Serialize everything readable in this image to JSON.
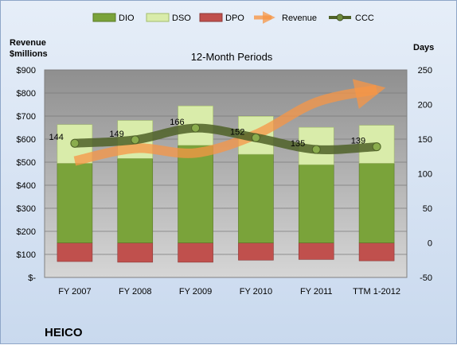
{
  "chart_data": {
    "type": "bar",
    "subtitle": "12-Month Periods",
    "company": "HEICO",
    "ylabel_left": [
      "Revenue",
      "$millions"
    ],
    "ylabel_right": "Days",
    "categories": [
      "FY 2007",
      "FY 2008",
      "FY 2009",
      "FY 2010",
      "FY 2011",
      "TTM 1-2012"
    ],
    "legend": [
      "DIO",
      "DSO",
      "DPO",
      "Revenue",
      "CCC"
    ],
    "legend_position": "top",
    "left_axis": {
      "ticks": [
        "$-",
        "$100",
        "$200",
        "$300",
        "$400",
        "$500",
        "$600",
        "$700",
        "$800",
        "$900"
      ],
      "ylim": [
        0,
        900
      ]
    },
    "right_axis": {
      "ticks": [
        "-50",
        "0",
        "50",
        "100",
        "150",
        "200",
        "250"
      ],
      "ylim": [
        -50,
        250
      ]
    },
    "grid": true,
    "series": [
      {
        "name": "DIO",
        "axis": "right",
        "values": [
          115,
          122,
          141,
          128,
          113,
          115
        ]
      },
      {
        "name": "DSO",
        "axis": "right",
        "values": [
          56,
          55,
          57,
          55,
          54,
          55
        ]
      },
      {
        "name": "DPO",
        "axis": "right",
        "values": [
          -27,
          -28,
          -28,
          -25,
          -24,
          -26
        ]
      },
      {
        "name": "Revenue",
        "axis": "left",
        "values": [
          505,
          560,
          540,
          620,
          760,
          815
        ]
      },
      {
        "name": "CCC",
        "axis": "right",
        "values": [
          144,
          149,
          166,
          152,
          135,
          139
        ]
      }
    ],
    "colors": {
      "DIO": "#7aa33a",
      "DSO": "#d9ecaa",
      "DPO": "#c0504d",
      "Revenue": "#f79646",
      "CCC": "#4f6228",
      "plot_bg": "#b3b3b3"
    }
  }
}
